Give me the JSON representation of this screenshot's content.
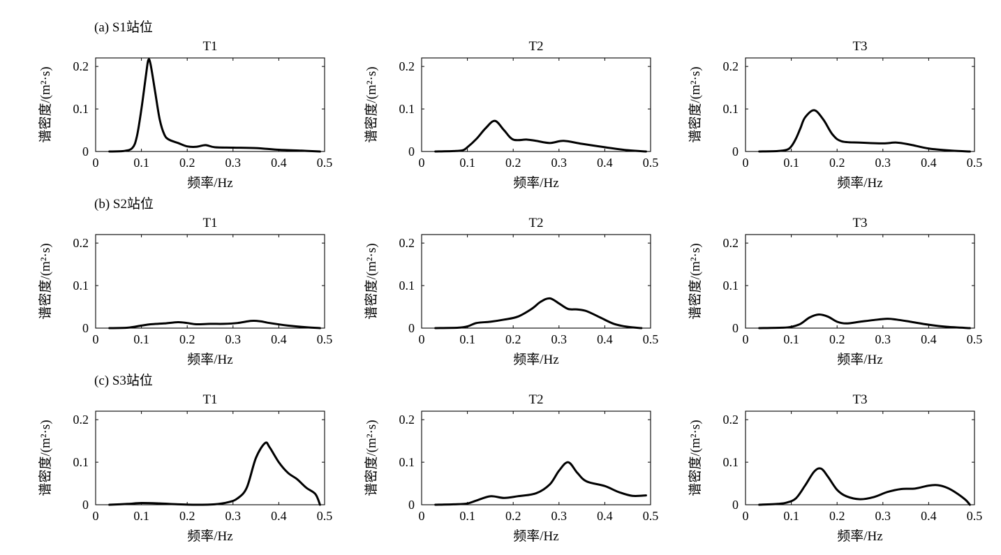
{
  "chart_data": [
    {
      "type": "line",
      "row_label": "(a) S1站位",
      "title": "T1",
      "xlabel": "频率/Hz",
      "ylabel": "谱密度/(m²·s)",
      "xlim": [
        0,
        0.5
      ],
      "ylim": [
        0,
        0.22
      ],
      "xticks": [
        "0",
        "0.1",
        "0.2",
        "0.3",
        "0.4",
        "0.5"
      ],
      "yticks": [
        "0",
        "0.1",
        "0.2"
      ],
      "x": [
        0.03,
        0.06,
        0.08,
        0.09,
        0.1,
        0.11,
        0.115,
        0.12,
        0.13,
        0.14,
        0.15,
        0.16,
        0.18,
        0.2,
        0.22,
        0.24,
        0.26,
        0.3,
        0.35,
        0.4,
        0.45,
        0.49
      ],
      "y": [
        0.0,
        0.001,
        0.008,
        0.035,
        0.1,
        0.18,
        0.215,
        0.205,
        0.14,
        0.075,
        0.04,
        0.028,
        0.02,
        0.012,
        0.011,
        0.015,
        0.01,
        0.009,
        0.008,
        0.004,
        0.002,
        0.0
      ]
    },
    {
      "type": "line",
      "row_label": "",
      "title": "T2",
      "xlabel": "频率/Hz",
      "ylabel": "谱密度/(m²·s)",
      "xlim": [
        0,
        0.5
      ],
      "ylim": [
        0,
        0.22
      ],
      "xticks": [
        "0",
        "0.1",
        "0.2",
        "0.3",
        "0.4",
        "0.5"
      ],
      "yticks": [
        "0",
        "0.1",
        "0.2"
      ],
      "x": [
        0.03,
        0.07,
        0.09,
        0.1,
        0.12,
        0.14,
        0.16,
        0.18,
        0.2,
        0.23,
        0.25,
        0.28,
        0.31,
        0.35,
        0.4,
        0.45,
        0.49
      ],
      "y": [
        0.0,
        0.001,
        0.003,
        0.01,
        0.03,
        0.055,
        0.072,
        0.05,
        0.028,
        0.028,
        0.025,
        0.02,
        0.025,
        0.018,
        0.01,
        0.003,
        0.0
      ]
    },
    {
      "type": "line",
      "row_label": "",
      "title": "T3",
      "xlabel": "频率/Hz",
      "ylabel": "谱密度/(m²·s)",
      "xlim": [
        0,
        0.5
      ],
      "ylim": [
        0,
        0.22
      ],
      "xticks": [
        "0",
        "0.1",
        "0.2",
        "0.3",
        "0.4",
        "0.5"
      ],
      "yticks": [
        "0",
        "0.1",
        "0.2"
      ],
      "x": [
        0.03,
        0.07,
        0.09,
        0.1,
        0.11,
        0.12,
        0.13,
        0.15,
        0.17,
        0.19,
        0.21,
        0.25,
        0.3,
        0.33,
        0.36,
        0.4,
        0.45,
        0.49
      ],
      "y": [
        0.0,
        0.001,
        0.004,
        0.012,
        0.03,
        0.055,
        0.08,
        0.097,
        0.075,
        0.04,
        0.024,
        0.021,
        0.019,
        0.021,
        0.016,
        0.007,
        0.002,
        0.0
      ]
    },
    {
      "type": "line",
      "row_label": "(b) S2站位",
      "title": "T1",
      "xlabel": "频率/Hz",
      "ylabel": "谱密度/(m²·s)",
      "xlim": [
        0,
        0.5
      ],
      "ylim": [
        0,
        0.22
      ],
      "xticks": [
        "0",
        "0.1",
        "0.2",
        "0.3",
        "0.4",
        "0.5"
      ],
      "yticks": [
        "0",
        "0.1",
        "0.2"
      ],
      "x": [
        0.03,
        0.07,
        0.1,
        0.12,
        0.15,
        0.18,
        0.2,
        0.22,
        0.25,
        0.28,
        0.31,
        0.34,
        0.36,
        0.38,
        0.42,
        0.46,
        0.49
      ],
      "y": [
        0.0,
        0.001,
        0.006,
        0.009,
        0.011,
        0.014,
        0.012,
        0.009,
        0.01,
        0.01,
        0.012,
        0.017,
        0.016,
        0.012,
        0.006,
        0.002,
        0.0
      ]
    },
    {
      "type": "line",
      "row_label": "",
      "title": "T2",
      "xlabel": "频率/Hz",
      "ylabel": "谱密度/(m²·s)",
      "xlim": [
        0,
        0.5
      ],
      "ylim": [
        0,
        0.22
      ],
      "xticks": [
        "0",
        "0.1",
        "0.2",
        "0.3",
        "0.4",
        "0.5"
      ],
      "yticks": [
        "0",
        "0.1",
        "0.2"
      ],
      "x": [
        0.03,
        0.08,
        0.1,
        0.12,
        0.15,
        0.18,
        0.21,
        0.24,
        0.26,
        0.28,
        0.3,
        0.32,
        0.34,
        0.36,
        0.39,
        0.42,
        0.45,
        0.48
      ],
      "y": [
        0.0,
        0.001,
        0.004,
        0.012,
        0.015,
        0.02,
        0.027,
        0.045,
        0.062,
        0.07,
        0.058,
        0.045,
        0.044,
        0.04,
        0.025,
        0.01,
        0.003,
        0.0
      ]
    },
    {
      "type": "line",
      "row_label": "",
      "title": "T3",
      "xlabel": "频率/Hz",
      "ylabel": "谱密度/(m²·s)",
      "xlim": [
        0,
        0.5
      ],
      "ylim": [
        0,
        0.22
      ],
      "xticks": [
        "0",
        "0.1",
        "0.2",
        "0.3",
        "0.4",
        "0.5"
      ],
      "yticks": [
        "0",
        "0.1",
        "0.2"
      ],
      "x": [
        0.03,
        0.08,
        0.1,
        0.12,
        0.14,
        0.16,
        0.18,
        0.2,
        0.22,
        0.25,
        0.28,
        0.31,
        0.33,
        0.36,
        0.4,
        0.44,
        0.49
      ],
      "y": [
        0.0,
        0.001,
        0.003,
        0.01,
        0.025,
        0.032,
        0.027,
        0.015,
        0.011,
        0.015,
        0.019,
        0.022,
        0.02,
        0.015,
        0.008,
        0.003,
        0.0
      ]
    },
    {
      "type": "line",
      "row_label": "(c) S3站位",
      "title": "T1",
      "xlabel": "频率/Hz",
      "ylabel": "谱密度/(m²·s)",
      "xlim": [
        0,
        0.5
      ],
      "ylim": [
        0,
        0.22
      ],
      "xticks": [
        "0",
        "0.1",
        "0.2",
        "0.3",
        "0.4",
        "0.5"
      ],
      "yticks": [
        "0",
        "0.1",
        "0.2"
      ],
      "x": [
        0.03,
        0.07,
        0.1,
        0.14,
        0.18,
        0.22,
        0.26,
        0.29,
        0.31,
        0.33,
        0.35,
        0.37,
        0.38,
        0.4,
        0.42,
        0.44,
        0.46,
        0.48,
        0.49
      ],
      "y": [
        0.0,
        0.002,
        0.004,
        0.003,
        0.001,
        0.0,
        0.001,
        0.006,
        0.015,
        0.04,
        0.11,
        0.145,
        0.135,
        0.1,
        0.075,
        0.06,
        0.04,
        0.025,
        0.0
      ]
    },
    {
      "type": "line",
      "row_label": "",
      "title": "T2",
      "xlabel": "频率/Hz",
      "ylabel": "谱密度/(m²·s)",
      "xlim": [
        0,
        0.5
      ],
      "ylim": [
        0,
        0.22
      ],
      "xticks": [
        "0",
        "0.1",
        "0.2",
        "0.3",
        "0.4",
        "0.5"
      ],
      "yticks": [
        "0",
        "0.1",
        "0.2"
      ],
      "x": [
        0.03,
        0.07,
        0.1,
        0.12,
        0.15,
        0.18,
        0.21,
        0.25,
        0.28,
        0.3,
        0.32,
        0.34,
        0.36,
        0.4,
        0.43,
        0.46,
        0.49
      ],
      "y": [
        0.0,
        0.001,
        0.003,
        0.01,
        0.02,
        0.016,
        0.02,
        0.027,
        0.048,
        0.08,
        0.1,
        0.075,
        0.055,
        0.044,
        0.03,
        0.021,
        0.022
      ]
    },
    {
      "type": "line",
      "row_label": "",
      "title": "T3",
      "xlabel": "频率/Hz",
      "ylabel": "谱密度/(m²·s)",
      "xlim": [
        0,
        0.5
      ],
      "ylim": [
        0,
        0.22
      ],
      "xticks": [
        "0",
        "0.1",
        "0.2",
        "0.3",
        "0.4",
        "0.5"
      ],
      "yticks": [
        "0",
        "0.1",
        "0.2"
      ],
      "x": [
        0.03,
        0.07,
        0.09,
        0.11,
        0.13,
        0.15,
        0.165,
        0.18,
        0.2,
        0.22,
        0.25,
        0.28,
        0.31,
        0.34,
        0.37,
        0.4,
        0.42,
        0.44,
        0.46,
        0.48,
        0.49
      ],
      "y": [
        0.0,
        0.002,
        0.005,
        0.015,
        0.045,
        0.078,
        0.085,
        0.066,
        0.035,
        0.02,
        0.013,
        0.018,
        0.03,
        0.037,
        0.038,
        0.045,
        0.046,
        0.04,
        0.028,
        0.012,
        0.0
      ]
    }
  ]
}
